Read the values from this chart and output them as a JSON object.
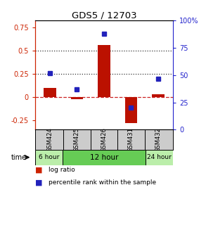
{
  "title": "GDS5 / 12703",
  "samples": [
    "GSM424",
    "GSM425",
    "GSM426",
    "GSM431",
    "GSM432"
  ],
  "log_ratio": [
    0.1,
    -0.02,
    0.56,
    -0.28,
    0.03
  ],
  "percentile_rank": [
    52,
    37,
    88,
    20,
    47
  ],
  "bar_color": "#bb1100",
  "dot_color": "#2222bb",
  "ylim_left": [
    -0.35,
    0.82
  ],
  "ylim_right": [
    0,
    100
  ],
  "yticks_left": [
    -0.25,
    0.0,
    0.25,
    0.5,
    0.75
  ],
  "ytick_labels_left": [
    "-0.25",
    "0",
    "0.25",
    "0.5",
    "0.75"
  ],
  "yticks_right": [
    0,
    25,
    50,
    75,
    100
  ],
  "ytick_labels_right": [
    "0",
    "25",
    "50",
    "75",
    "100%"
  ],
  "hlines": [
    0.0,
    0.25,
    0.5
  ],
  "hline_styles": [
    "--",
    ":",
    ":"
  ],
  "hline_colors": [
    "#cc2222",
    "#333333",
    "#333333"
  ],
  "time_groups": [
    {
      "label": "6 hour",
      "start": 0,
      "end": 1,
      "color": "#bbeeaa"
    },
    {
      "label": "12 hour",
      "start": 1,
      "end": 4,
      "color": "#66cc55"
    },
    {
      "label": "24 hour",
      "start": 4,
      "end": 5,
      "color": "#bbeeaa"
    }
  ],
  "left_axis_color": "#cc2200",
  "right_axis_color": "#2222cc",
  "background_color": "#ffffff",
  "sample_header_bg": "#cccccc",
  "legend_log_ratio_color": "#cc2200",
  "legend_pct_color": "#2222bb"
}
